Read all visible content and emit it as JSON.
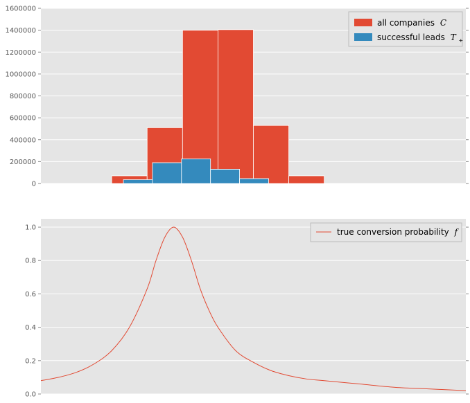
{
  "chart_data": [
    {
      "type": "bar",
      "title": "",
      "xlabel": "",
      "ylabel": "",
      "ylim": [
        0,
        1600000
      ],
      "yticks": [
        0,
        200000,
        400000,
        600000,
        800000,
        1000000,
        1200000,
        1400000,
        1600000
      ],
      "ytick_labels": [
        "0",
        "200000",
        "400000",
        "600000",
        "800000",
        "1000000",
        "1200000",
        "1400000",
        "1600000"
      ],
      "xlim": [
        0,
        12
      ],
      "grid": true,
      "legend_position": "top-right",
      "series": [
        {
          "name": "all companies",
          "name_math": "C",
          "color": "#E24A33",
          "bins": [
            {
              "x0": 2,
              "x1": 3,
              "value": 70000
            },
            {
              "x0": 3,
              "x1": 4,
              "value": 510000
            },
            {
              "x0": 4,
              "x1": 5,
              "value": 1400000
            },
            {
              "x0": 5,
              "x1": 6,
              "value": 1405000
            },
            {
              "x0": 6,
              "x1": 7,
              "value": 530000
            },
            {
              "x0": 7,
              "x1": 8,
              "value": 70000
            }
          ]
        },
        {
          "name": "successful leads",
          "name_math": "T",
          "name_sub": "+",
          "color": "#348ABD",
          "bins": [
            {
              "x0": 2.33,
              "x1": 3.15,
              "value": 35000
            },
            {
              "x0": 3.15,
              "x1": 3.97,
              "value": 190000
            },
            {
              "x0": 3.97,
              "x1": 4.79,
              "value": 225000
            },
            {
              "x0": 4.79,
              "x1": 5.61,
              "value": 130000
            },
            {
              "x0": 5.61,
              "x1": 6.43,
              "value": 45000
            }
          ]
        }
      ]
    },
    {
      "type": "line",
      "title": "",
      "xlabel": "",
      "ylabel": "",
      "ylim": [
        0,
        1.05
      ],
      "yticks": [
        0.0,
        0.2,
        0.4,
        0.6,
        0.8,
        1.0
      ],
      "ytick_labels": [
        "0.0",
        "0.2",
        "0.4",
        "0.6",
        "0.8",
        "1.0"
      ],
      "xlim": [
        0,
        12
      ],
      "grid": true,
      "legend_position": "top-right",
      "series": [
        {
          "name": "true conversion probability",
          "name_math": "f",
          "color": "#E24A33",
          "x": [
            0,
            0.5,
            1,
            1.5,
            2,
            2.5,
            3,
            3.25,
            3.5,
            3.75,
            4,
            4.25,
            4.5,
            4.75,
            5,
            5.5,
            6,
            6.5,
            7,
            7.5,
            8,
            9,
            10,
            11,
            12
          ],
          "y": [
            0.08,
            0.1,
            0.13,
            0.18,
            0.26,
            0.4,
            0.63,
            0.8,
            0.94,
            1.0,
            0.94,
            0.8,
            0.63,
            0.5,
            0.4,
            0.26,
            0.19,
            0.14,
            0.11,
            0.09,
            0.08,
            0.06,
            0.04,
            0.03,
            0.02
          ]
        }
      ]
    }
  ]
}
